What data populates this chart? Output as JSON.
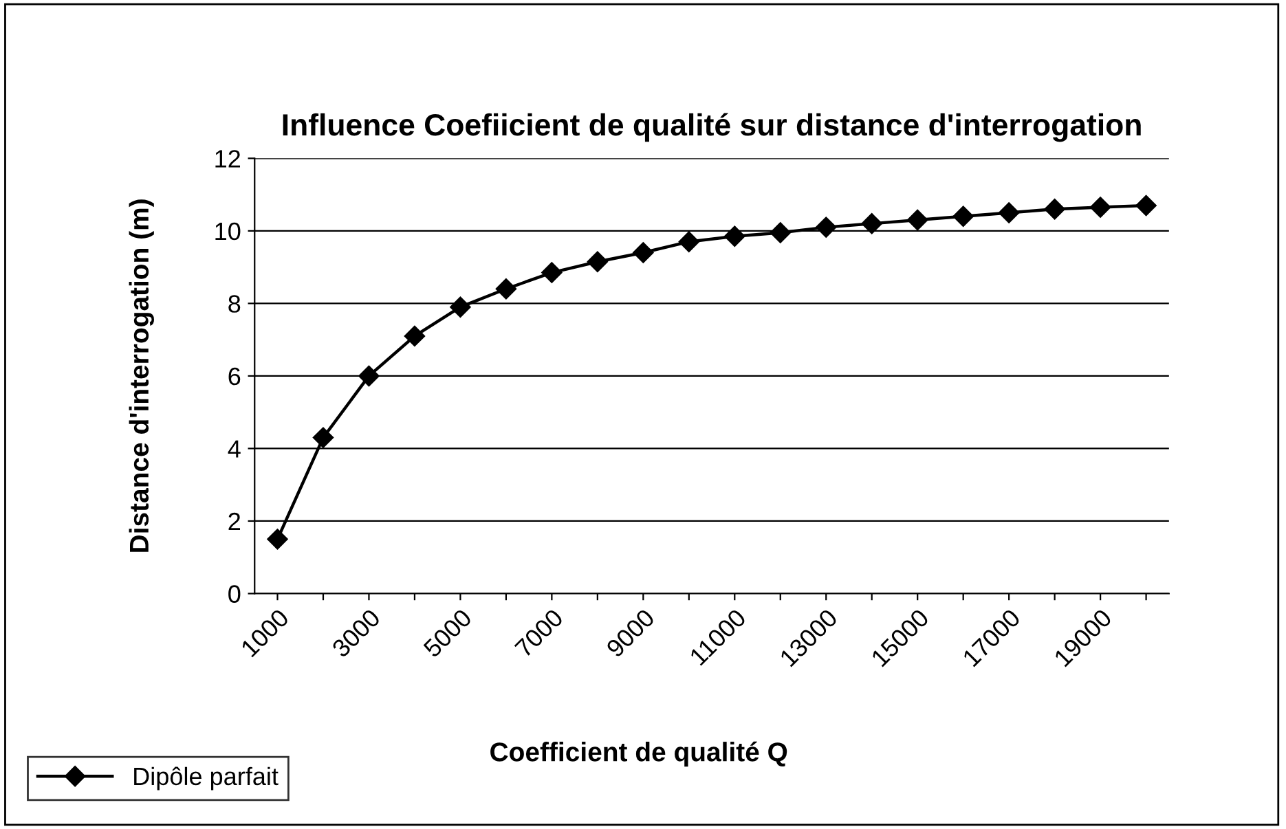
{
  "chart_data": {
    "type": "line",
    "title": "Influence Coefiicient de qualité sur distance d'interrogation",
    "xlabel": "Coefficient de qualité Q",
    "ylabel": "Distance d'interrogation (m)",
    "categories": [
      "1000",
      null,
      "3000",
      null,
      "5000",
      null,
      "7000",
      null,
      "9000",
      null,
      "11000",
      null,
      "13000",
      null,
      "15000",
      null,
      "17000",
      null,
      "19000",
      null
    ],
    "series": [
      {
        "name": "Dipôle parfait",
        "color": "#000000",
        "values": [
          1.5,
          4.3,
          6.0,
          7.1,
          7.9,
          8.4,
          8.85,
          9.15,
          9.4,
          9.7,
          9.85,
          9.95,
          10.1,
          10.2,
          10.3,
          10.4,
          10.5,
          10.6,
          10.65,
          10.7
        ]
      }
    ],
    "ylim": [
      0,
      12
    ],
    "yticks": [
      0,
      2,
      4,
      6,
      8,
      10,
      12
    ],
    "grid": "y",
    "legend": "bottom left",
    "marker": "diamond",
    "line_style": "solid"
  }
}
